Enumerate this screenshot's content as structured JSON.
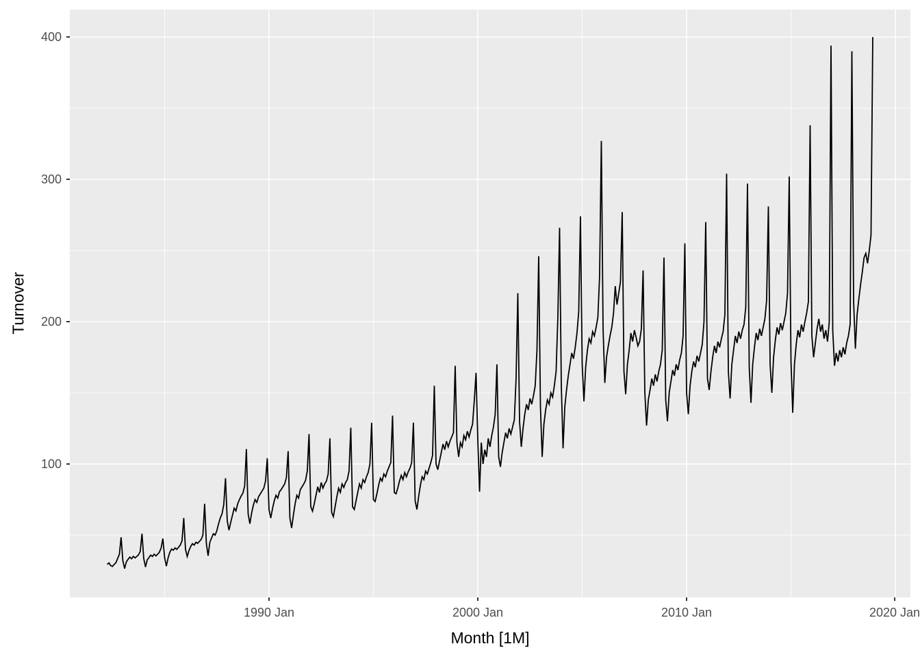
{
  "figure": {
    "x_axis_title": "Month [1M]",
    "y_axis_title": "Turnover"
  },
  "chart_data": {
    "type": "line",
    "title": "",
    "xlabel": "Month [1M]",
    "ylabel": "Turnover",
    "legend": "none",
    "grid": "on",
    "panel_bg": "#EBEBEB",
    "grid_color": "#FFFFFF",
    "line_color": "#000000",
    "tick_text_color": "#4D4D4D",
    "tick_mark_color": "#333333",
    "frequency": "monthly",
    "start_month": "1982-04",
    "end_month": "2018-12",
    "x_domain_years": [
      1980.46,
      2020.72
    ],
    "y_domain": [
      6.2,
      419.3
    ],
    "x_major_ticks": [
      {
        "value": 1990,
        "label": "1990 Jan"
      },
      {
        "value": 2000,
        "label": "2000 Jan"
      },
      {
        "value": 2010,
        "label": "2010 Jan"
      },
      {
        "value": 2020,
        "label": "2020 Jan"
      }
    ],
    "x_minor_ticks": [
      1985,
      1995,
      2005,
      2015
    ],
    "y_major_ticks": [
      {
        "value": 400,
        "label": "400"
      },
      {
        "value": 300,
        "label": "300"
      },
      {
        "value": 200,
        "label": "200"
      },
      {
        "value": 100,
        "label": "100"
      }
    ],
    "y_minor_ticks": [
      50,
      150,
      250,
      350
    ],
    "series_name": "Turnover",
    "values": [
      29.4,
      30.5,
      28.6,
      28,
      29.4,
      30.6,
      33.6,
      36.5,
      48.5,
      32,
      26.5,
      31.2,
      33,
      34.6,
      33.4,
      35.1,
      34,
      35,
      36.2,
      38.6,
      51,
      33.6,
      27.6,
      32.6,
      34.2,
      36,
      35,
      36.6,
      35.4,
      36.6,
      38,
      41,
      47.6,
      34.2,
      28.2,
      34,
      38,
      40.2,
      39.4,
      41,
      40,
      41.5,
      43,
      46,
      62,
      40,
      35,
      39.2,
      42,
      44,
      43,
      45,
      44.2,
      45.6,
      47,
      50,
      72,
      44,
      35.5,
      45,
      48,
      51,
      50,
      53,
      58,
      62,
      65,
      71.5,
      90,
      60,
      53.5,
      59,
      64,
      69,
      67,
      72,
      75,
      77.5,
      79.5,
      84.5,
      110.5,
      65,
      58,
      65.5,
      71,
      75,
      73,
      77,
      79,
      81,
      83,
      88,
      104,
      68,
      62,
      68.5,
      74,
      78,
      76,
      80.5,
      82,
      84,
      86,
      90.5,
      109,
      62,
      55,
      64,
      72,
      78,
      76,
      82,
      84,
      86,
      88.5,
      95,
      121,
      70,
      66.8,
      72,
      78,
      84,
      80,
      87,
      83,
      86,
      88,
      93,
      118,
      66,
      63,
      70,
      77,
      83,
      80,
      86,
      83.5,
      87,
      89,
      95,
      125.5,
      70,
      68,
      74,
      80,
      86,
      83,
      89,
      87,
      91,
      94,
      100,
      129,
      75,
      73.6,
      79,
      85,
      90,
      88,
      93,
      91,
      95,
      98,
      101,
      134,
      80,
      79,
      83,
      88,
      92,
      89,
      94,
      91,
      94.5,
      97,
      101,
      129,
      74,
      68,
      77,
      85,
      91,
      89,
      95,
      93,
      97,
      101,
      106,
      155,
      100,
      96,
      102,
      108,
      114,
      110,
      116,
      112,
      116,
      119,
      122,
      169,
      115,
      105,
      115,
      112,
      120,
      117,
      123,
      119,
      124,
      128,
      145,
      164,
      117,
      80.5,
      115,
      100,
      110,
      105,
      118,
      112,
      120,
      126,
      135,
      170,
      105,
      98,
      108,
      115,
      122,
      118,
      125,
      121,
      126,
      131,
      160,
      220,
      130,
      112,
      125,
      135,
      142,
      138,
      146,
      142,
      148,
      155,
      180,
      246,
      140,
      105,
      128,
      138,
      145,
      142,
      150,
      147,
      155,
      165,
      203,
      266,
      155,
      111,
      140,
      152,
      162,
      170,
      178,
      174,
      182,
      192,
      207,
      274,
      170,
      144,
      168,
      180,
      188,
      185,
      193,
      190,
      196,
      203,
      232,
      327,
      195,
      157,
      175,
      183,
      190,
      196,
      206,
      225,
      212,
      220,
      228,
      277,
      165,
      149,
      170,
      180,
      192,
      186,
      194,
      189,
      183,
      186,
      195,
      236,
      150,
      127,
      145,
      152,
      160,
      155,
      163,
      158,
      165,
      170,
      180,
      245,
      145,
      130,
      150,
      158,
      166,
      162,
      170,
      166,
      173,
      178,
      190,
      255,
      150,
      135,
      155,
      165,
      172,
      168,
      176,
      172,
      178,
      184,
      200,
      270,
      160,
      152,
      165,
      175,
      183,
      178,
      186,
      182,
      188,
      193,
      205,
      304,
      165,
      146,
      170,
      180,
      190,
      185,
      193,
      188,
      194,
      198,
      210,
      297,
      168,
      143,
      170,
      182,
      192,
      187,
      195,
      190,
      196,
      202,
      215,
      281,
      170,
      150,
      175,
      187,
      196,
      191,
      199,
      194,
      200,
      206,
      220,
      302,
      172,
      136,
      170,
      184,
      194,
      189,
      198,
      193,
      200,
      206,
      214,
      338,
      190,
      175,
      185,
      195,
      202,
      193,
      198,
      188,
      194,
      186,
      200,
      394,
      194,
      169,
      178,
      172,
      180,
      175,
      182,
      177,
      185,
      190,
      198,
      390,
      214,
      181,
      205,
      216,
      226,
      235,
      245,
      248,
      241,
      250,
      261,
      400
    ]
  }
}
